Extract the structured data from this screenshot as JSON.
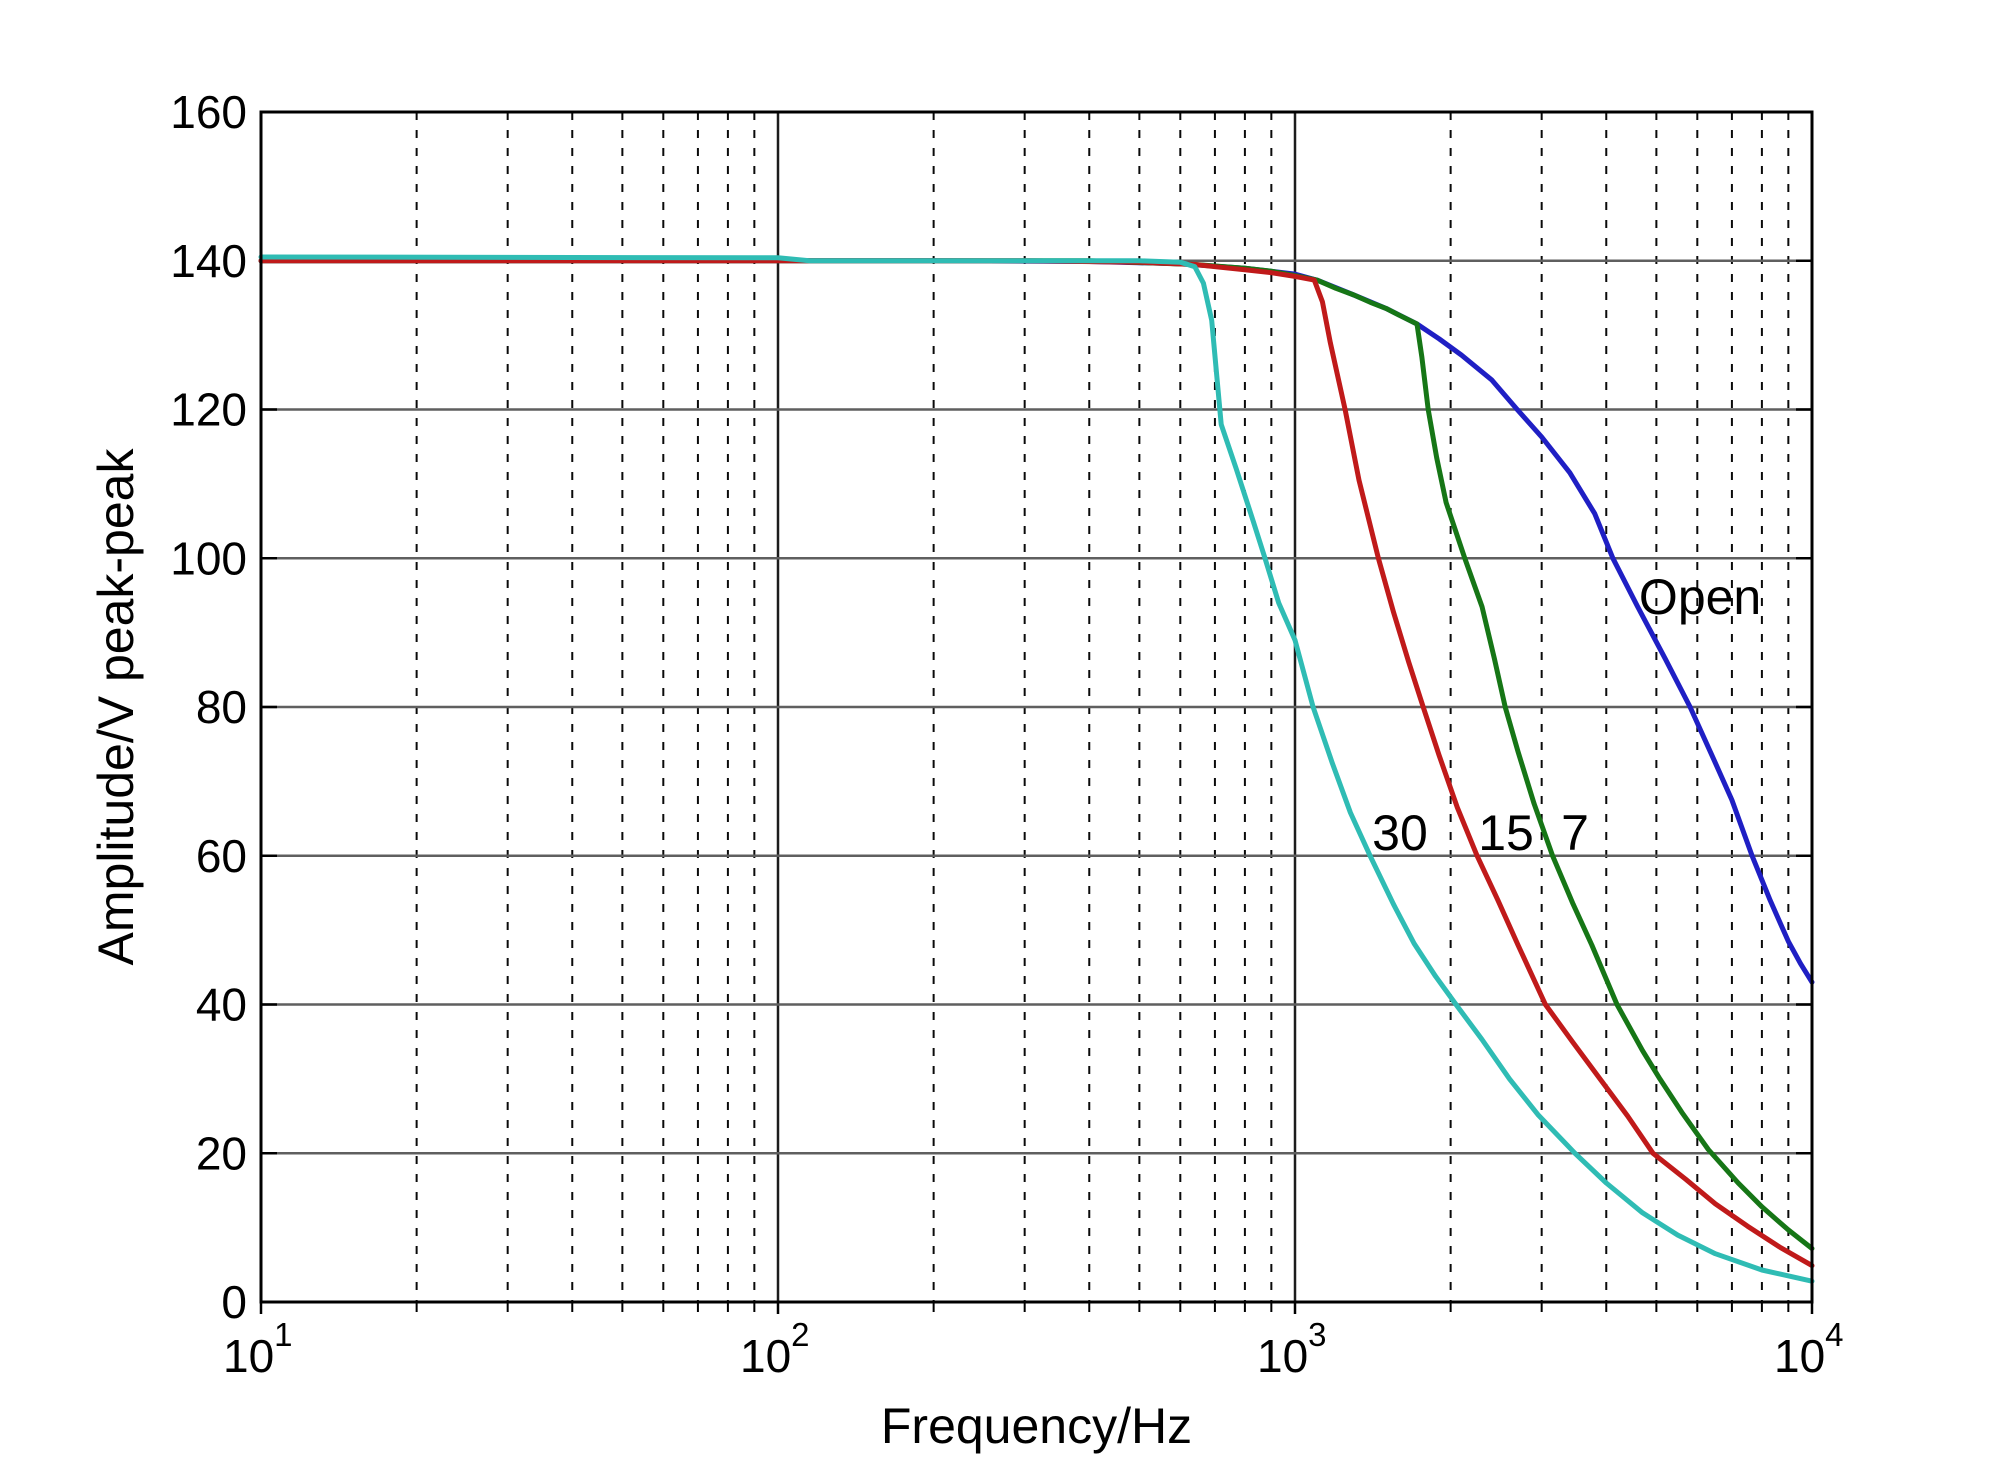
{
  "figure": {
    "background": "#ffffff",
    "description": "Amplitude versus frequency response curves for four port conditions"
  },
  "chart_data": {
    "type": "line",
    "title": "",
    "xlabel": "Frequency/Hz",
    "ylabel": "Amplitude/V peak-peak",
    "x_scale": "log",
    "xlim": [
      10,
      10000
    ],
    "ylim": [
      0,
      160
    ],
    "grid": "on",
    "legend_position": "none",
    "y_ticks": [
      0,
      20,
      40,
      60,
      80,
      100,
      120,
      140,
      160
    ],
    "x_major_ticks": [
      {
        "value": 10,
        "base": "10",
        "exp": "1"
      },
      {
        "value": 100,
        "base": "10",
        "exp": "2"
      },
      {
        "value": 1000,
        "base": "10",
        "exp": "3"
      },
      {
        "value": 10000,
        "base": "10",
        "exp": "4"
      }
    ],
    "x_minor_multipliers": [
      2,
      3,
      4,
      5,
      6,
      7,
      8,
      9
    ],
    "colors": {
      "axis": "#000000",
      "grid_major_h": "#5f5f5f",
      "grid_major_v": "#1c1c1c",
      "grid_minor": "#0a0a0a",
      "text": "#000000"
    },
    "series": [
      {
        "name": "Open",
        "color": "#1f1fc4",
        "points": [
          [
            10,
            140
          ],
          [
            200,
            140
          ],
          [
            400,
            139.9
          ],
          [
            600,
            139.6
          ],
          [
            800,
            139
          ],
          [
            1000,
            138.2
          ],
          [
            1103,
            137.4
          ],
          [
            1300,
            135.4
          ],
          [
            1500,
            133.6
          ],
          [
            1722,
            131.5
          ],
          [
            1900,
            129.5
          ],
          [
            2100,
            127.3
          ],
          [
            2400,
            124
          ],
          [
            2690,
            120
          ],
          [
            3000,
            116.3
          ],
          [
            3400,
            111.5
          ],
          [
            3800,
            106
          ],
          [
            4120,
            100
          ],
          [
            4600,
            93.5
          ],
          [
            5200,
            86.5
          ],
          [
            5810,
            80
          ],
          [
            6500,
            72.5
          ],
          [
            7000,
            67.5
          ],
          [
            7660,
            60
          ],
          [
            8300,
            54
          ],
          [
            9000,
            48.5
          ],
          [
            9500,
            45.5
          ],
          [
            10000,
            43
          ]
        ]
      },
      {
        "name": "7",
        "color": "#167616",
        "points": [
          [
            10,
            140
          ],
          [
            400,
            140
          ],
          [
            640,
            139.5
          ],
          [
            700,
            139.3
          ],
          [
            800,
            139
          ],
          [
            900,
            138.6
          ],
          [
            1000,
            138
          ],
          [
            1103,
            137.4
          ],
          [
            1200,
            136.3
          ],
          [
            1300,
            135.4
          ],
          [
            1400,
            134.4
          ],
          [
            1500,
            133.6
          ],
          [
            1600,
            132.6
          ],
          [
            1722,
            131.5
          ],
          [
            1760,
            127
          ],
          [
            1810,
            120
          ],
          [
            1880,
            113.5
          ],
          [
            1960,
            107.5
          ],
          [
            2130,
            100
          ],
          [
            2300,
            93.5
          ],
          [
            2430,
            86.5
          ],
          [
            2550,
            80
          ],
          [
            2700,
            74
          ],
          [
            2900,
            67
          ],
          [
            3150,
            60
          ],
          [
            3450,
            53.5
          ],
          [
            3750,
            48
          ],
          [
            4195,
            40
          ],
          [
            4700,
            33.8
          ],
          [
            5080,
            30
          ],
          [
            5600,
            25.5
          ],
          [
            6300,
            20.5
          ],
          [
            7200,
            16
          ],
          [
            8000,
            12.8
          ],
          [
            9000,
            9.7
          ],
          [
            10000,
            7.2
          ]
        ]
      },
      {
        "name": "15",
        "color": "#c01a1a",
        "points": [
          [
            10,
            140
          ],
          [
            300,
            140
          ],
          [
            500,
            139.8
          ],
          [
            640,
            139.5
          ],
          [
            700,
            139.2
          ],
          [
            800,
            138.8
          ],
          [
            900,
            138.4
          ],
          [
            1000,
            137.9
          ],
          [
            1090,
            137.4
          ],
          [
            1130,
            134.5
          ],
          [
            1170,
            129
          ],
          [
            1250,
            120
          ],
          [
            1330,
            110.5
          ],
          [
            1450,
            100
          ],
          [
            1550,
            92.8
          ],
          [
            1660,
            86
          ],
          [
            1770,
            80
          ],
          [
            1900,
            73.5
          ],
          [
            2060,
            66.5
          ],
          [
            2250,
            60
          ],
          [
            2470,
            54
          ],
          [
            2700,
            48
          ],
          [
            3050,
            40
          ],
          [
            3440,
            35
          ],
          [
            3890,
            30
          ],
          [
            4400,
            25
          ],
          [
            4925,
            20
          ],
          [
            5700,
            16.5
          ],
          [
            6500,
            13.2
          ],
          [
            7500,
            10.2
          ],
          [
            8700,
            7.3
          ],
          [
            10000,
            4.9
          ]
        ]
      },
      {
        "name": "30",
        "color": "#2fbcb4",
        "points": [
          [
            10,
            140.5
          ],
          [
            100,
            140.4
          ],
          [
            115,
            140
          ],
          [
            300,
            140
          ],
          [
            500,
            140
          ],
          [
            600,
            139.8
          ],
          [
            640,
            139.2
          ],
          [
            665,
            137
          ],
          [
            690,
            132
          ],
          [
            720,
            118
          ],
          [
            770,
            112
          ],
          [
            830,
            105
          ],
          [
            875,
            100
          ],
          [
            930,
            94
          ],
          [
            1000,
            89
          ],
          [
            1084,
            80
          ],
          [
            1180,
            72.5
          ],
          [
            1280,
            65.8
          ],
          [
            1397,
            60
          ],
          [
            1550,
            53.5
          ],
          [
            1700,
            48.2
          ],
          [
            1870,
            43.8
          ],
          [
            2048,
            40
          ],
          [
            2300,
            35.3
          ],
          [
            2600,
            30
          ],
          [
            2950,
            25.2
          ],
          [
            3480,
            20
          ],
          [
            4000,
            16
          ],
          [
            4700,
            12
          ],
          [
            5500,
            9
          ],
          [
            6500,
            6.5
          ],
          [
            8000,
            4.3
          ],
          [
            10000,
            2.8
          ]
        ]
      }
    ],
    "annotations": [
      {
        "text": "30",
        "f": 1596,
        "amp": 63.2
      },
      {
        "text": "15",
        "f": 2560,
        "amp": 63.2
      },
      {
        "text": "7",
        "f": 3480,
        "amp": 63.2
      },
      {
        "text": "Open",
        "f": 6075,
        "amp": 94.9
      }
    ]
  }
}
